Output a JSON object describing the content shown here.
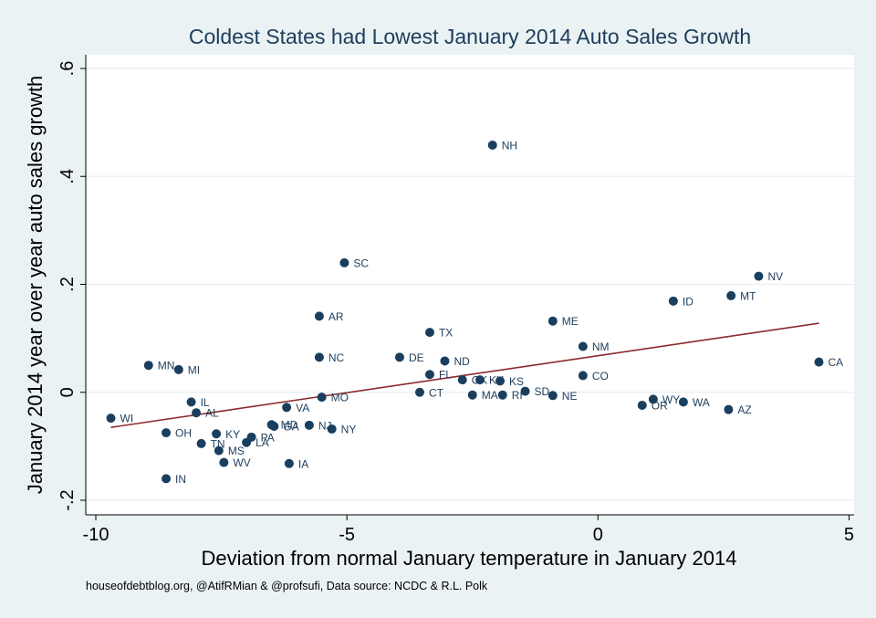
{
  "chart_data": {
    "type": "scatter",
    "title": "Coldest States had Lowest January 2014 Auto Sales Growth",
    "xlabel": "Deviation from normal January temperature in January 2014",
    "ylabel": "January 2014 year over year auto sales growth",
    "note": "houseofdebtblog.org, @AtifRMian & @profsufi, Data source: NCDC & R.L. Polk",
    "xlim": [
      -10.2,
      5.1
    ],
    "ylim": [
      -0.2,
      0.6
    ],
    "xticks": [
      {
        "value": -10,
        "label": "-10"
      },
      {
        "value": -5,
        "label": "-5"
      },
      {
        "value": 0,
        "label": "0"
      },
      {
        "value": 5,
        "label": "5"
      }
    ],
    "yticks": [
      {
        "value": -0.2,
        "label": "-.2"
      },
      {
        "value": 0,
        "label": "0"
      },
      {
        "value": 0.2,
        "label": ".2"
      },
      {
        "value": 0.4,
        "label": ".4"
      },
      {
        "value": 0.6,
        "label": ".6"
      }
    ],
    "grid": true,
    "colors": {
      "background": "#eaf2f3",
      "plot_background": "#ffffff",
      "marker": "#1a3f5e",
      "label": "#1e3d5c",
      "fit_line": "#8b2a2a",
      "grid": "#e8eeef"
    },
    "fit_line": {
      "x": [
        -9.7,
        4.4
      ],
      "y": [
        -0.065,
        0.128
      ]
    },
    "points": [
      {
        "label": "NH",
        "x": -2.1,
        "y": 0.458
      },
      {
        "label": "SC",
        "x": -5.05,
        "y": 0.24
      },
      {
        "label": "NV",
        "x": 3.2,
        "y": 0.215
      },
      {
        "label": "MT",
        "x": 2.65,
        "y": 0.179
      },
      {
        "label": "ID",
        "x": 1.5,
        "y": 0.169
      },
      {
        "label": "AR",
        "x": -5.55,
        "y": 0.141
      },
      {
        "label": "ME",
        "x": -0.9,
        "y": 0.132
      },
      {
        "label": "TX",
        "x": -3.35,
        "y": 0.111
      },
      {
        "label": "NM",
        "x": -0.3,
        "y": 0.085
      },
      {
        "label": "NC",
        "x": -5.55,
        "y": 0.065
      },
      {
        "label": "DE",
        "x": -3.95,
        "y": 0.065
      },
      {
        "label": "ND",
        "x": -3.05,
        "y": 0.058
      },
      {
        "label": "CA",
        "x": 4.4,
        "y": 0.056
      },
      {
        "label": "MN",
        "x": -8.95,
        "y": 0.05
      },
      {
        "label": "MI",
        "x": -8.35,
        "y": 0.042
      },
      {
        "label": "FL",
        "x": -3.35,
        "y": 0.033
      },
      {
        "label": "CO",
        "x": -0.3,
        "y": 0.031
      },
      {
        "label": "OK",
        "x": -2.7,
        "y": 0.023
      },
      {
        "label": "KY",
        "x": -2.35,
        "y": 0.023
      },
      {
        "label": "KS",
        "x": -1.95,
        "y": 0.021
      },
      {
        "label": "SD",
        "x": -1.45,
        "y": 0.002
      },
      {
        "label": "CT",
        "x": -3.55,
        "y": 0.0
      },
      {
        "label": "MA",
        "x": -2.5,
        "y": -0.005
      },
      {
        "label": "RI",
        "x": -1.9,
        "y": -0.005
      },
      {
        "label": "NE",
        "x": -0.9,
        "y": -0.006
      },
      {
        "label": "MO",
        "x": -5.5,
        "y": -0.009
      },
      {
        "label": "WY",
        "x": 1.1,
        "y": -0.013
      },
      {
        "label": "IL",
        "x": -8.1,
        "y": -0.018
      },
      {
        "label": "WA",
        "x": 1.7,
        "y": -0.018
      },
      {
        "label": "OR",
        "x": 0.88,
        "y": -0.024
      },
      {
        "label": "VA",
        "x": -6.2,
        "y": -0.028
      },
      {
        "label": "AZ",
        "x": 2.6,
        "y": -0.032
      },
      {
        "label": "AL",
        "x": -8.0,
        "y": -0.038
      },
      {
        "label": "WI",
        "x": -9.7,
        "y": -0.048
      },
      {
        "label": "MD",
        "x": -6.5,
        "y": -0.06
      },
      {
        "label": "GA",
        "x": -6.45,
        "y": -0.063
      },
      {
        "label": "NJ",
        "x": -5.75,
        "y": -0.061
      },
      {
        "label": "NY",
        "x": -5.3,
        "y": -0.068
      },
      {
        "label": "OH",
        "x": -8.6,
        "y": -0.075
      },
      {
        "label": "KY",
        "x": -7.6,
        "y": -0.077
      },
      {
        "label": "PA",
        "x": -6.9,
        "y": -0.083
      },
      {
        "label": "LA",
        "x": -7.0,
        "y": -0.093
      },
      {
        "label": "TN",
        "x": -7.9,
        "y": -0.095
      },
      {
        "label": "MS",
        "x": -7.55,
        "y": -0.108
      },
      {
        "label": "WV",
        "x": -7.45,
        "y": -0.13
      },
      {
        "label": "IA",
        "x": -6.15,
        "y": -0.132
      },
      {
        "label": "IN",
        "x": -8.6,
        "y": -0.16
      }
    ]
  }
}
